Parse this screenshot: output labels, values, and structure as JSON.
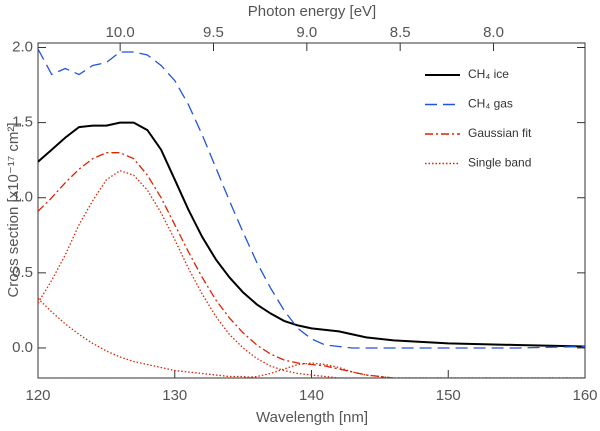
{
  "chart_data": {
    "type": "line",
    "xlabel": "Wavelength [nm]",
    "ylabel": "Cross section [x10⁻¹⁷ cm²]",
    "x2label": "Photon energy [eV]",
    "x": [
      120,
      121,
      122,
      123,
      124,
      125,
      126,
      127,
      128,
      129,
      130,
      131,
      132,
      133,
      134,
      135,
      136,
      137,
      138,
      139,
      140,
      141,
      142,
      143,
      144,
      145,
      146,
      148,
      150,
      155,
      160
    ],
    "xlim": [
      120,
      160
    ],
    "xticks": [
      120,
      130,
      140,
      150,
      160
    ],
    "x2lim": [
      10.44,
      7.51
    ],
    "x2ticks": [
      {
        "value": 10,
        "label": "10.0"
      },
      9.5,
      {
        "value": 9,
        "label": "9.0"
      },
      8.5,
      {
        "value": 8,
        "label": "8.0"
      }
    ],
    "ylim": [
      -0.2,
      2.03
    ],
    "yticks": [
      {
        "value": 0,
        "label": "0.0"
      },
      0.5,
      {
        "value": 1,
        "label": "1.0"
      },
      1.5,
      {
        "value": 2,
        "label": "2.0"
      }
    ],
    "legend": "upper right",
    "series": [
      {
        "name": "CH₄ ice",
        "color": "#000000",
        "dash": "solid",
        "values": [
          1.24,
          1.32,
          1.4,
          1.47,
          1.48,
          1.48,
          1.5,
          1.5,
          1.45,
          1.32,
          1.12,
          0.92,
          0.74,
          0.59,
          0.47,
          0.37,
          0.29,
          0.23,
          0.18,
          0.15,
          0.13,
          0.12,
          0.11,
          0.09,
          0.07,
          0.06,
          0.05,
          0.04,
          0.03,
          0.02,
          0.01
        ]
      },
      {
        "name": "CH₄ gas",
        "color": "#2255dd",
        "dash": "dashed",
        "values": [
          1.99,
          1.82,
          1.86,
          1.82,
          1.88,
          1.9,
          1.97,
          1.97,
          1.95,
          1.88,
          1.78,
          1.62,
          1.42,
          1.2,
          0.98,
          0.77,
          0.57,
          0.4,
          0.25,
          0.13,
          0.06,
          0.02,
          0.01,
          0,
          0,
          0,
          0,
          0,
          0,
          0,
          0.01
        ]
      },
      {
        "name": "Gaussian fit",
        "color": "#dd2200",
        "dash": "dashdot",
        "values": [
          0.91,
          1.0,
          1.1,
          1.19,
          1.26,
          1.3,
          1.3,
          1.26,
          1.15,
          1.0,
          0.82,
          0.64,
          0.47,
          0.32,
          0.2,
          0.1,
          0.02,
          -0.04,
          -0.08,
          -0.1,
          -0.11,
          -0.12,
          -0.14,
          -0.16,
          -0.18,
          -0.19,
          -0.2,
          -0.2,
          -0.2,
          -0.2,
          -0.2
        ]
      },
      {
        "name": "Single band",
        "color": "#dd2200",
        "dash": "dotted",
        "values": [
          [
            0.3,
            0.45,
            0.62,
            0.82,
            0.98,
            1.12,
            1.18,
            1.15,
            1.05,
            0.9,
            0.72,
            0.53,
            0.36,
            0.21,
            0.09,
            0,
            -0.07,
            -0.12,
            -0.15,
            -0.17,
            -0.18,
            -0.19,
            -0.2,
            -0.2,
            -0.2,
            -0.2,
            -0.2,
            -0.2,
            -0.2,
            -0.2,
            -0.2
          ],
          [
            0.33,
            0.24,
            0.16,
            0.09,
            0.03,
            -0.02,
            -0.06,
            -0.09,
            -0.11,
            -0.13,
            -0.15,
            -0.16,
            -0.17,
            -0.18,
            -0.19,
            -0.19,
            -0.2,
            -0.2,
            -0.2,
            -0.2,
            -0.2,
            -0.2,
            -0.2,
            -0.2,
            -0.2,
            -0.2,
            -0.2,
            -0.2,
            -0.2,
            -0.2,
            -0.2
          ],
          [
            -0.2,
            -0.2,
            -0.2,
            -0.2,
            -0.2,
            -0.2,
            -0.2,
            -0.2,
            -0.2,
            -0.2,
            -0.2,
            -0.2,
            -0.2,
            -0.2,
            -0.2,
            -0.2,
            -0.19,
            -0.17,
            -0.14,
            -0.11,
            -0.1,
            -0.11,
            -0.13,
            -0.16,
            -0.18,
            -0.19,
            -0.2,
            -0.2,
            -0.2,
            -0.2,
            -0.2
          ]
        ]
      }
    ]
  }
}
